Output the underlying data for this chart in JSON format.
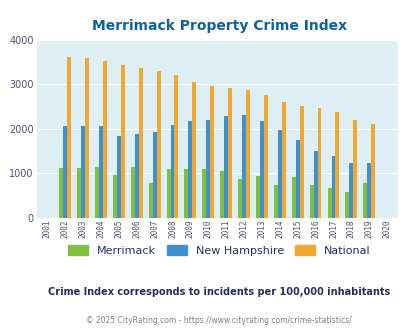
{
  "title": "Merrimack Property Crime Index",
  "title_color": "#1060a0",
  "years": [
    2001,
    2002,
    2003,
    2004,
    2005,
    2006,
    2007,
    2008,
    2009,
    2010,
    2011,
    2012,
    2013,
    2014,
    2015,
    2016,
    2017,
    2018,
    2019,
    2020
  ],
  "merrimack": [
    0,
    1110,
    1120,
    1130,
    960,
    1130,
    780,
    1090,
    1100,
    1100,
    1060,
    870,
    930,
    740,
    920,
    730,
    680,
    570,
    790,
    0
  ],
  "new_hampshire": [
    0,
    2060,
    2060,
    2060,
    1830,
    1880,
    1920,
    2090,
    2170,
    2190,
    2280,
    2310,
    2170,
    1980,
    1740,
    1510,
    1390,
    1240,
    1220,
    0
  ],
  "national": [
    0,
    3620,
    3580,
    3510,
    3430,
    3360,
    3290,
    3210,
    3040,
    2950,
    2910,
    2870,
    2750,
    2600,
    2500,
    2460,
    2380,
    2200,
    2110,
    0
  ],
  "merrimack_color": "#80c040",
  "nh_color": "#4090d0",
  "national_color": "#f0a830",
  "bg_color": "#ddeef5",
  "ylim": [
    0,
    4000
  ],
  "ylabel_step": 1000,
  "subtitle": "Crime Index corresponds to incidents per 100,000 inhabitants",
  "subtitle_color": "#203060",
  "footer": "© 2025 CityRating.com - https://www.cityrating.com/crime-statistics/",
  "footer_color": "#808080",
  "grid_color": "#ffffff",
  "bar_width": 0.22,
  "legend_labels": [
    "Merrimack",
    "New Hampshire",
    "National"
  ]
}
